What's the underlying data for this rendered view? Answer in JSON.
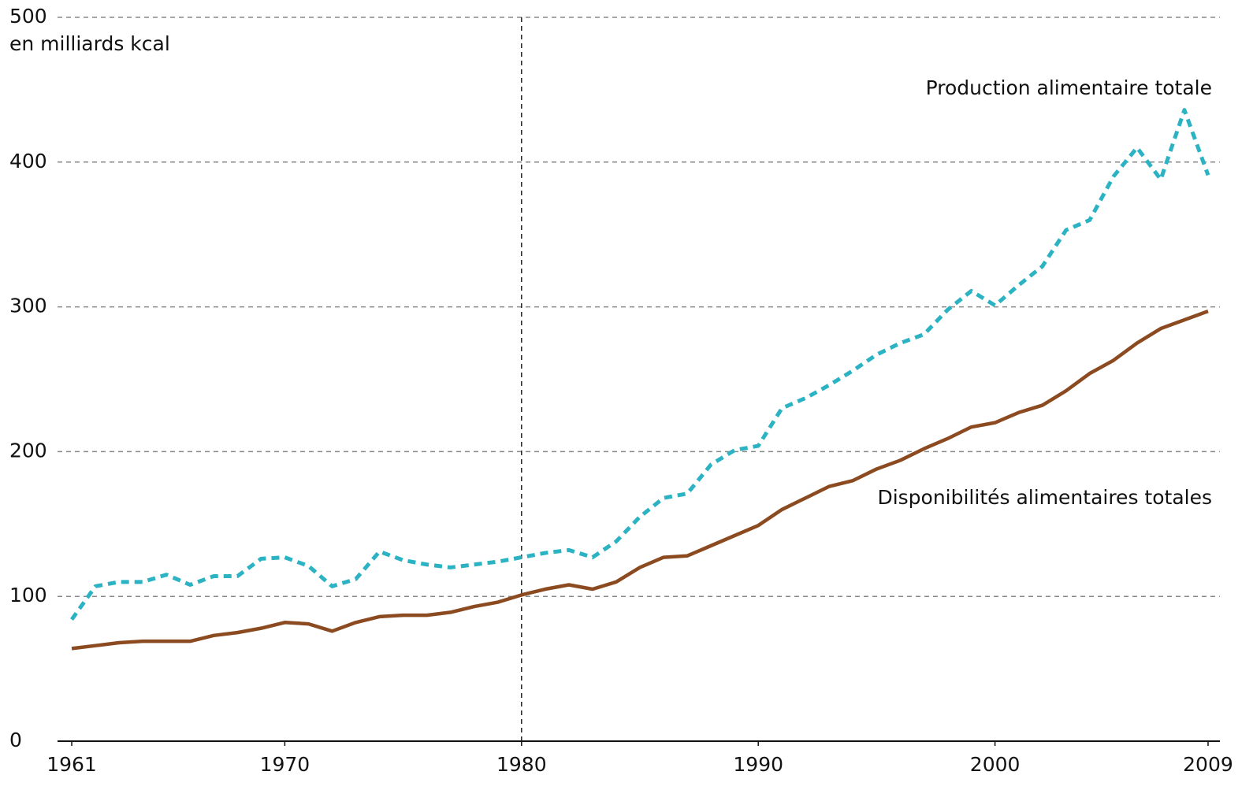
{
  "chart_data": {
    "type": "line",
    "y_label": "en milliards kcal",
    "x": [
      1961,
      1962,
      1963,
      1964,
      1965,
      1966,
      1967,
      1968,
      1969,
      1970,
      1971,
      1972,
      1973,
      1974,
      1975,
      1976,
      1977,
      1978,
      1979,
      1980,
      1981,
      1982,
      1983,
      1984,
      1985,
      1986,
      1987,
      1988,
      1989,
      1990,
      1991,
      1992,
      1993,
      1994,
      1995,
      1996,
      1997,
      1998,
      1999,
      2000,
      2001,
      2002,
      2003,
      2004,
      2005,
      2006,
      2007,
      2008,
      2009
    ],
    "series": [
      {
        "name": "Production alimentaire totale",
        "color": "#2bb3c4",
        "dashed": true,
        "values": [
          84,
          107,
          110,
          110,
          115,
          108,
          114,
          114,
          126,
          127,
          121,
          107,
          112,
          131,
          125,
          122,
          120,
          122,
          124,
          127,
          130,
          132,
          127,
          138,
          155,
          168,
          171,
          191,
          201,
          204,
          230,
          237,
          246,
          256,
          267,
          275,
          281,
          298,
          311,
          301,
          315,
          328,
          353,
          360,
          390,
          410,
          388,
          436,
          391
        ]
      },
      {
        "name": "Disponibilités alimentaires totales",
        "color": "#8b4a1f",
        "dashed": false,
        "values": [
          64,
          66,
          68,
          69,
          69,
          69,
          73,
          75,
          78,
          82,
          81,
          76,
          82,
          86,
          87,
          87,
          89,
          93,
          96,
          101,
          105,
          108,
          105,
          110,
          120,
          127,
          128,
          135,
          142,
          149,
          160,
          168,
          176,
          180,
          188,
          194,
          202,
          209,
          217,
          220,
          227,
          232,
          242,
          254,
          263,
          275,
          285,
          291,
          297
        ]
      }
    ],
    "xlim": [
      1960.4,
      2009.5
    ],
    "xticks": [
      1961,
      1970,
      1980,
      1990,
      2000,
      2009
    ],
    "ylim": [
      0,
      500
    ],
    "yticks": [
      0,
      100,
      200,
      300,
      400,
      500
    ],
    "grid": true,
    "vline": 1980
  }
}
